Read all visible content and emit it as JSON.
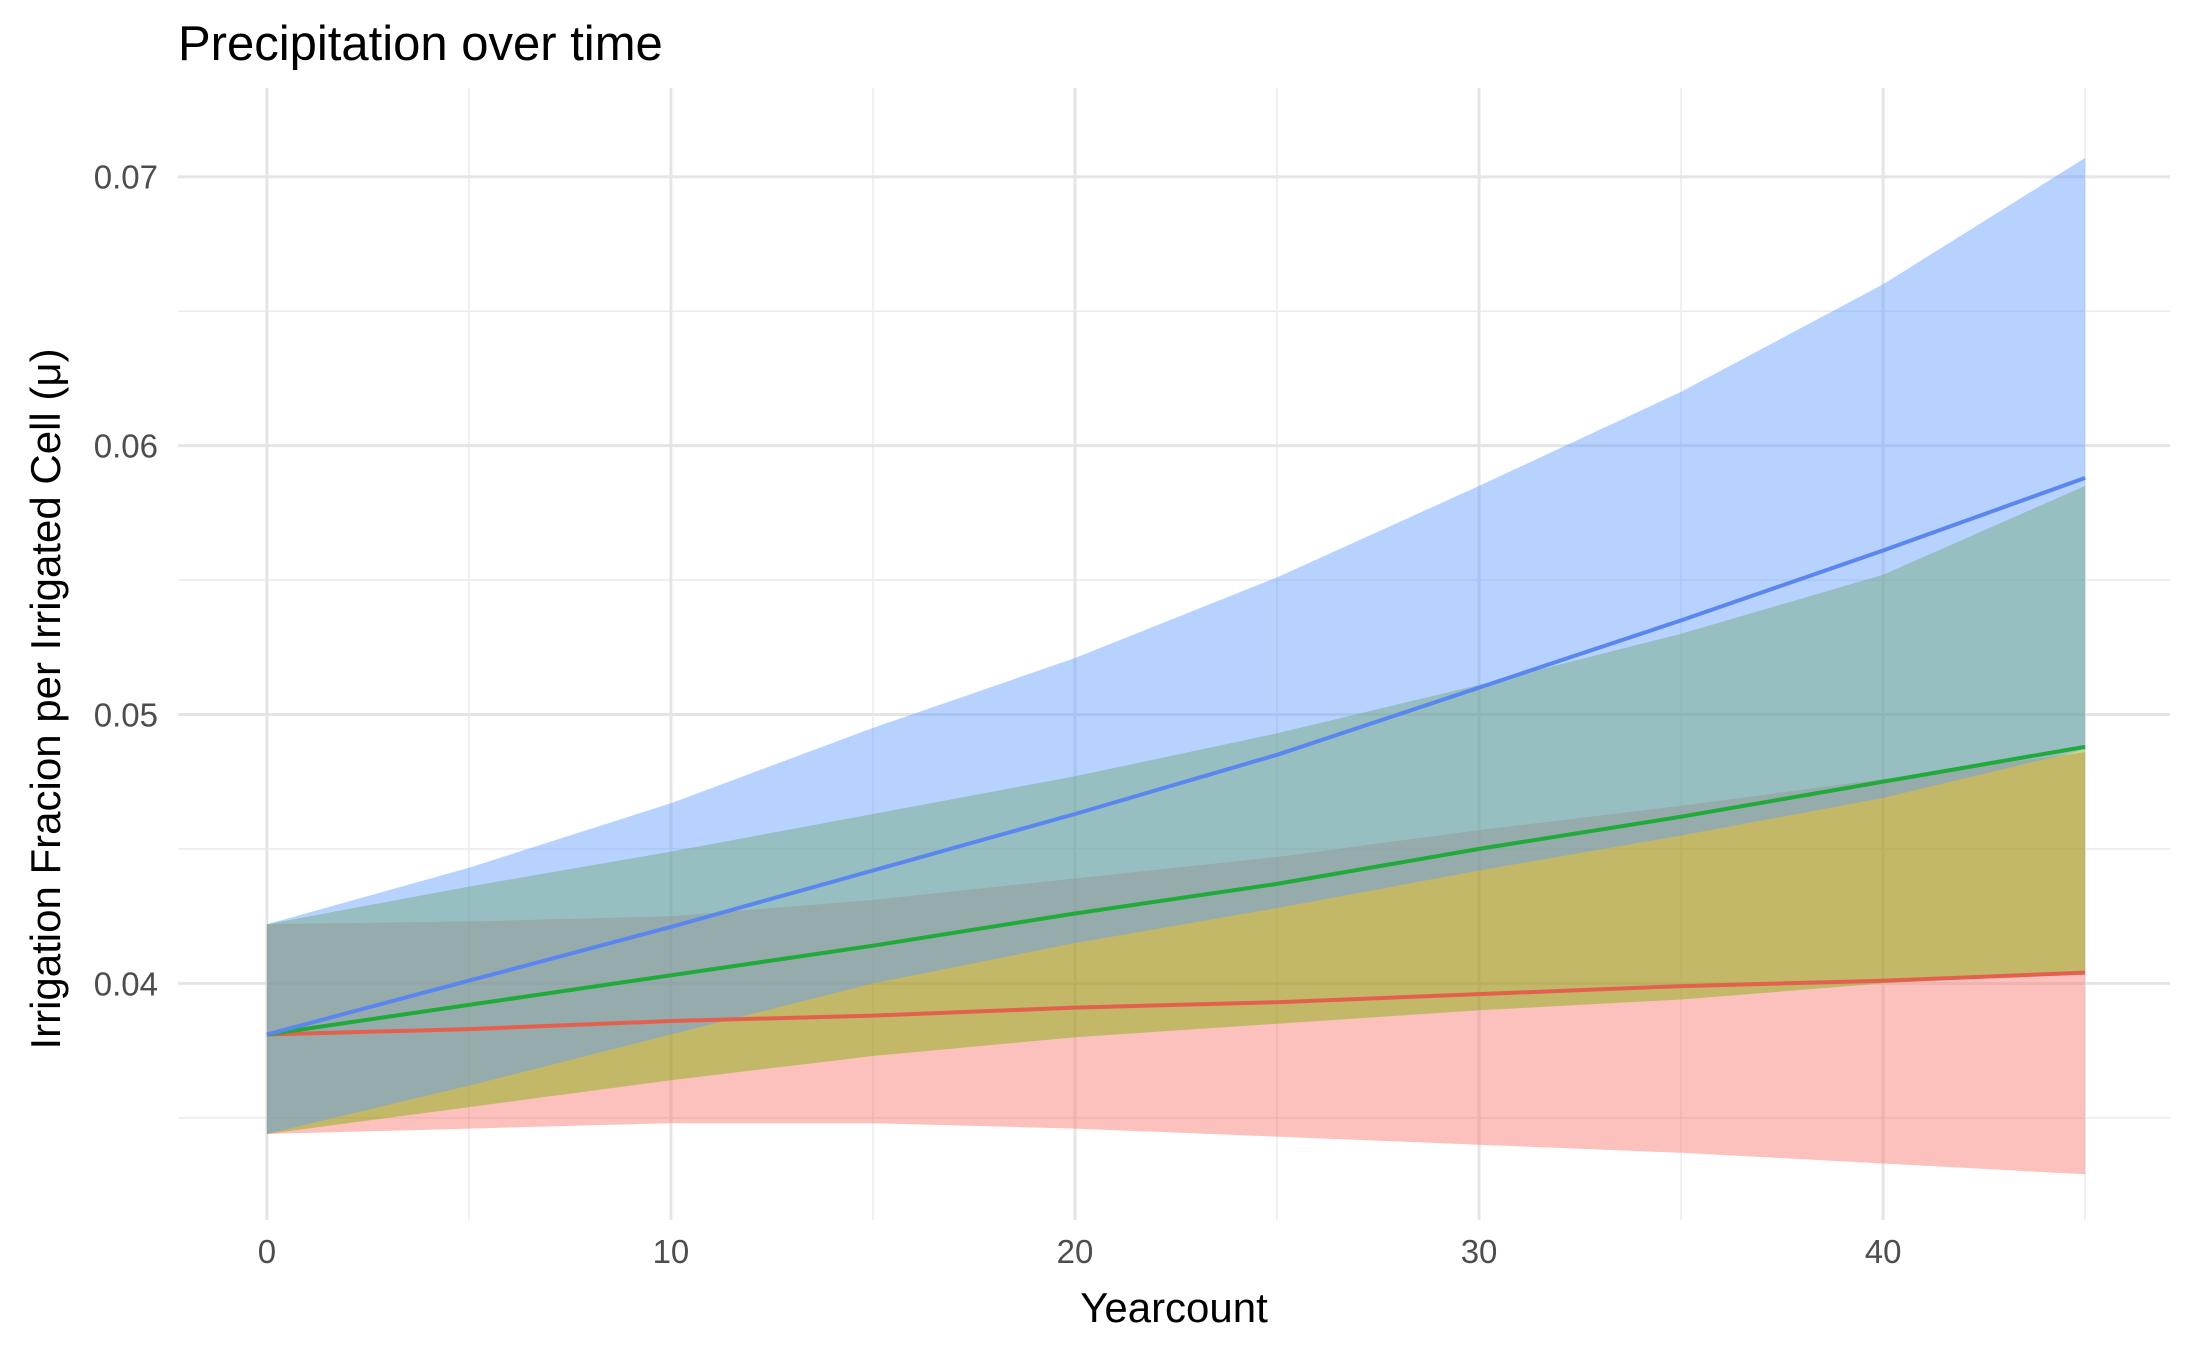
{
  "chart_data": {
    "type": "area",
    "title": "Precipitation over time",
    "xlabel": "Yearcount",
    "ylabel": "Irrigation Fracion per Irrigated Cell (μ)",
    "xlim": [
      -2.2,
      47.1
    ],
    "ylim": [
      0.0312,
      0.0733
    ],
    "x_ticks": [
      0,
      10,
      20,
      30,
      40
    ],
    "x_tick_labels": [
      "0",
      "10",
      "20",
      "30",
      "40"
    ],
    "y_ticks": [
      0.04,
      0.05,
      0.06,
      0.07
    ],
    "y_tick_labels": [
      "0.04",
      "0.05",
      "0.06",
      "0.07"
    ],
    "grid": true,
    "legend": "none",
    "x": [
      0,
      5,
      10,
      15,
      20,
      25,
      30,
      35,
      40,
      45
    ],
    "series": [
      {
        "color": "#f8766d",
        "line_color": "#e4604e",
        "values": [
          0.0381,
          0.0383,
          0.0386,
          0.0388,
          0.0391,
          0.0393,
          0.0396,
          0.0399,
          0.0401,
          0.0404
        ],
        "lower": [
          0.0344,
          0.0346,
          0.0348,
          0.0348,
          0.0346,
          0.0343,
          0.034,
          0.0337,
          0.0333,
          0.0329
        ],
        "upper": [
          0.0422,
          0.0423,
          0.0425,
          0.0431,
          0.0439,
          0.0447,
          0.0457,
          0.0466,
          0.0476,
          0.0486
        ]
      },
      {
        "color": "#7cae00",
        "line_color": "#1faa3a",
        "values": [
          0.0381,
          0.0392,
          0.0403,
          0.0414,
          0.0426,
          0.0437,
          0.045,
          0.0462,
          0.0475,
          0.0488
        ],
        "lower": [
          0.0344,
          0.0354,
          0.0364,
          0.0373,
          0.038,
          0.0385,
          0.039,
          0.0394,
          0.04,
          0.0404
        ],
        "upper": [
          0.0422,
          0.0436,
          0.0449,
          0.0463,
          0.0477,
          0.0493,
          0.0511,
          0.053,
          0.0552,
          0.0585
        ]
      },
      {
        "color": "#619cff",
        "line_color": "#5a86f0",
        "values": [
          0.0381,
          0.0401,
          0.0421,
          0.0442,
          0.0463,
          0.0485,
          0.051,
          0.0535,
          0.0561,
          0.0588
        ],
        "lower": [
          0.0344,
          0.0362,
          0.0381,
          0.04,
          0.0415,
          0.0428,
          0.0442,
          0.0455,
          0.0469,
          0.0487
        ],
        "upper": [
          0.0422,
          0.0443,
          0.0467,
          0.0495,
          0.0521,
          0.0551,
          0.0585,
          0.062,
          0.066,
          0.0707
        ]
      }
    ]
  }
}
